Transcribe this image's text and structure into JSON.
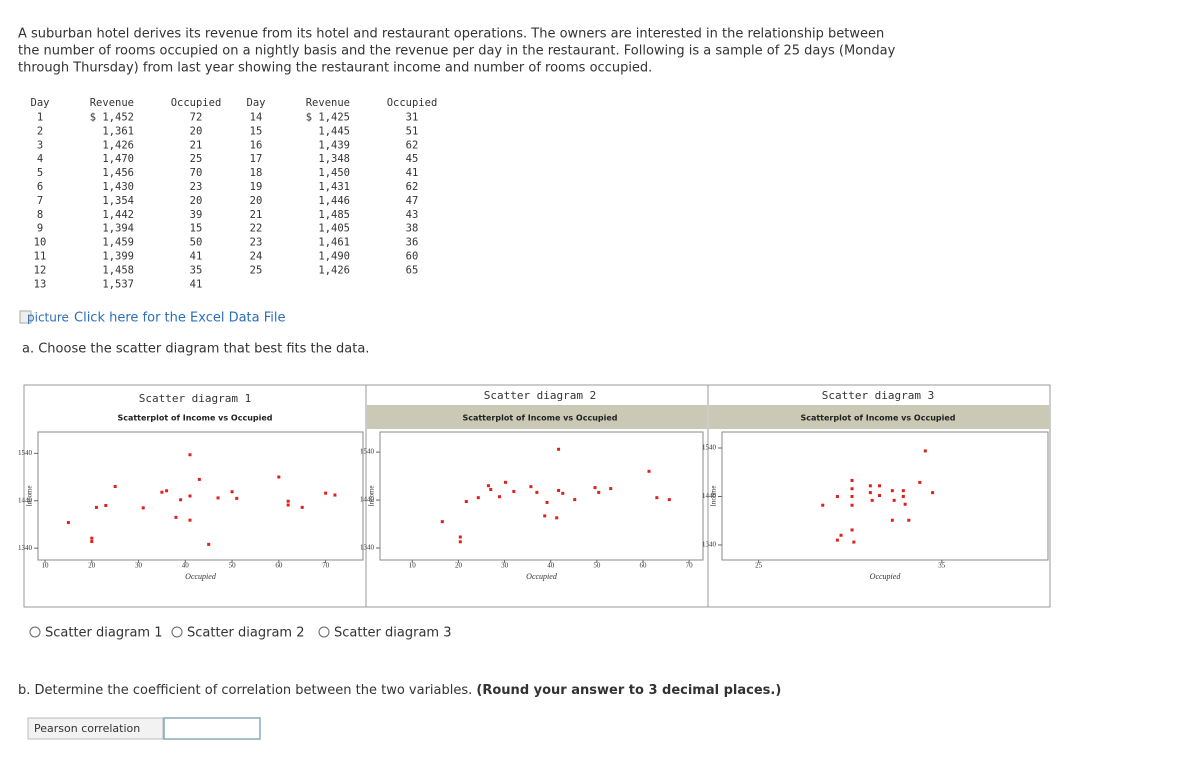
{
  "intro": [
    "A suburban hotel derives its revenue from its hotel and restaurant operations. The owners are interested in the relationship between",
    "the number of rooms occupied on a nightly basis and the revenue per day in the restaurant. Following is a sample of 25 days (Monday",
    "through Thursday) from last year showing the restaurant income and number of rooms occupied."
  ],
  "table": {
    "headers": [
      "Day",
      "Revenue",
      "Occupied",
      "Day",
      "Revenue",
      "Occupied"
    ],
    "rows": [
      [
        "1",
        "$ 1,452",
        "72",
        "14",
        "$ 1,425",
        "31"
      ],
      [
        "2",
        "1,361",
        "20",
        "15",
        "1,445",
        "51"
      ],
      [
        "3",
        "1,426",
        "21",
        "16",
        "1,439",
        "62"
      ],
      [
        "4",
        "1,470",
        "25",
        "17",
        "1,348",
        "45"
      ],
      [
        "5",
        "1,456",
        "70",
        "18",
        "1,450",
        "41"
      ],
      [
        "6",
        "1,430",
        "23",
        "19",
        "1,431",
        "62"
      ],
      [
        "7",
        "1,354",
        "20",
        "20",
        "1,446",
        "47"
      ],
      [
        "8",
        "1,442",
        "39",
        "21",
        "1,485",
        "43"
      ],
      [
        "9",
        "1,394",
        "15",
        "22",
        "1,405",
        "38"
      ],
      [
        "10",
        "1,459",
        "50",
        "23",
        "1,461",
        "36"
      ],
      [
        "11",
        "1,399",
        "41",
        "24",
        "1,490",
        "60"
      ],
      [
        "12",
        "1,458",
        "35",
        "25",
        "1,426",
        "65"
      ],
      [
        "13",
        "1,537",
        "41"
      ]
    ]
  },
  "image_alt": "picture",
  "link": "Click here for the Excel Data File",
  "question_a": "a. Choose the scatter diagram that best fits the data.",
  "chart_data": [
    {
      "type": "scatter",
      "header": "Scatter diagram 1",
      "title": "Scatterplot of Income vs Occupied",
      "x_label": "Occupied",
      "y_label": "Income",
      "color": "#e0201c",
      "x": [
        72,
        20,
        21,
        25,
        70,
        23,
        20,
        39,
        15,
        50,
        41,
        35,
        41,
        31,
        51,
        62,
        45,
        41,
        62,
        47,
        43,
        38,
        36,
        60,
        65
      ],
      "y": [
        1452,
        1361,
        1426,
        1470,
        1456,
        1430,
        1354,
        1442,
        1394,
        1459,
        1399,
        1458,
        1537,
        1425,
        1445,
        1439,
        1348,
        1450,
        1431,
        1446,
        1485,
        1405,
        1461,
        1490,
        1426
      ],
      "xlim": [
        8.5,
        78
      ],
      "xticks": [
        10,
        20,
        30,
        40,
        50,
        60,
        70
      ],
      "ylim": [
        1315,
        1585
      ],
      "yticks": [
        1340,
        1440,
        1540
      ]
    },
    {
      "type": "scatter",
      "header": "Scatter diagram 2",
      "title": "Scatterplot of Income vs Occupied",
      "x_label": "Occupied",
      "y_label": "Income",
      "color": "#e0201c",
      "x": [
        16.5,
        20.4,
        20.4,
        21.7,
        24.3,
        26.5,
        27,
        28.9,
        30.2,
        32,
        35.7,
        37,
        38.7,
        39.2,
        41.3,
        41.7,
        41.7,
        42.6,
        45.2,
        49.6,
        50.4,
        53,
        61.3,
        63,
        65.7
      ],
      "y": [
        1395,
        1363,
        1353,
        1437,
        1445,
        1470,
        1462,
        1447,
        1477,
        1458,
        1468,
        1456,
        1407,
        1435,
        1403,
        1546,
        1460,
        1454,
        1441,
        1466,
        1456,
        1464,
        1500,
        1445,
        1441
      ],
      "xlim": [
        3,
        73
      ],
      "xticks": [
        10,
        20,
        30,
        40,
        50,
        60,
        70
      ],
      "ylim": [
        1315,
        1582
      ],
      "yticks": [
        1340,
        1440,
        1540
      ]
    },
    {
      "type": "scatter",
      "header": "Scatter diagram 3",
      "title": "Scatterplot of Income vs Occupied",
      "x_label": "Occupied",
      "y_label": "Income",
      "color": "#e0201c",
      "x": [
        28.5,
        29.3,
        29.5,
        30.1,
        30.1,
        30.1,
        30.1,
        30.1,
        30.2,
        31.1,
        31.1,
        31.2,
        31.6,
        31.6,
        32.3,
        32.3,
        32.4,
        32.9,
        32.9,
        33,
        33.2,
        33.8,
        34.1,
        34.5,
        29.3
      ],
      "y": [
        1422,
        1350,
        1360,
        1473,
        1456,
        1440,
        1422,
        1371,
        1346,
        1462,
        1448,
        1432,
        1462,
        1442,
        1452,
        1391,
        1432,
        1452,
        1440,
        1424,
        1391,
        1469,
        1534,
        1448,
        1440
      ],
      "xlim": [
        23,
        40.8
      ],
      "xticks": [
        25,
        35
      ],
      "ylim": [
        1309,
        1573
      ],
      "yticks": [
        1340,
        1440,
        1540
      ]
    }
  ],
  "options": [
    "Scatter diagram 1",
    "Scatter diagram 2",
    "Scatter diagram 3"
  ],
  "question_b": [
    "b. Determine the coefficient of correlation between the two variables.",
    "(Round your answer to 3 decimal places.)"
  ],
  "answer_label": "Pearson correlation"
}
